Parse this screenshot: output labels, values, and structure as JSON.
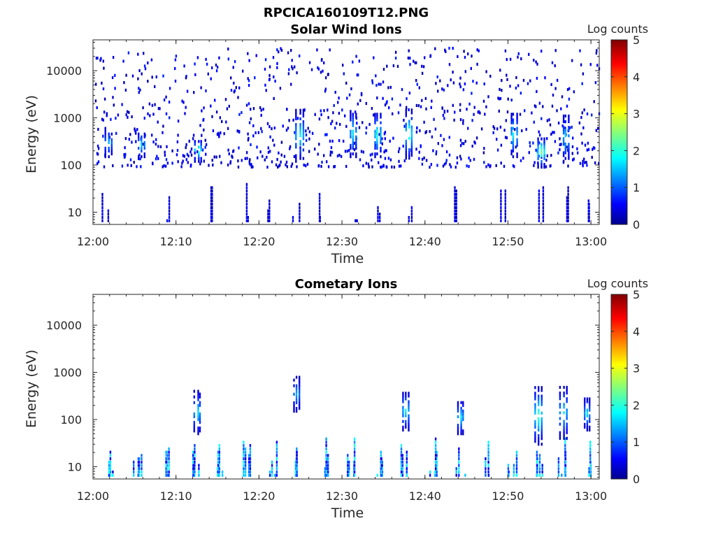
{
  "figure_title": "RPCICA160109T12.PNG",
  "colormap": "jet",
  "chart_data": [
    {
      "type": "heatmap",
      "title": "Solar Wind Ions",
      "xlabel": "Time",
      "ylabel": "Energy (eV)",
      "x_ticks": [
        "12:00",
        "12:10",
        "12:20",
        "12:30",
        "12:40",
        "12:50",
        "13:00"
      ],
      "xlim": [
        "12:00",
        "13:01"
      ],
      "y_ticks": [
        10,
        100,
        1000,
        10000
      ],
      "ylim": [
        5.5,
        45000
      ],
      "y_scale": "log",
      "colorbar": {
        "label": "Log counts",
        "min": 0,
        "max": 5,
        "ticks": [
          0,
          1,
          2,
          3,
          4,
          5
        ]
      },
      "features": {
        "scatter_band_ev": [
          90,
          30000
        ],
        "low_energy_columns_minutes": [
          1.5,
          8.7,
          14.5,
          18,
          21,
          24.5,
          27.8,
          31.5,
          34,
          37.8,
          43.5,
          49.5,
          53.8,
          56.7,
          59.2
        ],
        "bursts": [
          {
            "minute": 1.8,
            "ev_range": [
              150,
              600
            ],
            "peak_log_counts": 1.2
          },
          {
            "minute": 5.8,
            "ev_range": [
              150,
              500
            ],
            "peak_log_counts": 1.5
          },
          {
            "minute": 12.6,
            "ev_range": [
              120,
              350
            ],
            "peak_log_counts": 2.0
          },
          {
            "minute": 24.8,
            "ev_range": [
              120,
              1500
            ],
            "peak_log_counts": 1.6
          },
          {
            "minute": 31.3,
            "ev_range": [
              150,
              1500
            ],
            "peak_log_counts": 1.5
          },
          {
            "minute": 34.2,
            "ev_range": [
              150,
              1300
            ],
            "peak_log_counts": 1.8
          },
          {
            "minute": 38.0,
            "ev_range": [
              140,
              1500
            ],
            "peak_log_counts": 2.0
          },
          {
            "minute": 50.6,
            "ev_range": [
              150,
              1300
            ],
            "peak_log_counts": 1.6
          },
          {
            "minute": 53.9,
            "ev_range": [
              90,
              400
            ],
            "peak_log_counts": 2.3
          },
          {
            "minute": 56.9,
            "ev_range": [
              120,
              1200
            ],
            "peak_log_counts": 1.5
          }
        ]
      }
    },
    {
      "type": "heatmap",
      "title": "Cometary Ions",
      "xlabel": "Time",
      "ylabel": "Energy (eV)",
      "x_ticks": [
        "12:00",
        "12:10",
        "12:20",
        "12:30",
        "12:40",
        "12:50",
        "13:00"
      ],
      "xlim": [
        "12:00",
        "13:01"
      ],
      "y_ticks": [
        10,
        100,
        1000,
        10000
      ],
      "ylim": [
        5.5,
        45000
      ],
      "y_scale": "log",
      "colorbar": {
        "label": "Log counts",
        "min": 0,
        "max": 5,
        "ticks": [
          0,
          1,
          2,
          3,
          4,
          5
        ]
      },
      "features": {
        "low_energy_band_ev": [
          6,
          45
        ],
        "low_energy_columns_minutes": [
          2.0,
          5.3,
          8.8,
          12.2,
          15.2,
          18.4,
          21.5,
          24.8,
          27.8,
          31.0,
          34.2,
          37.6,
          40.8,
          44.2,
          47.5,
          50.5,
          53.6,
          56.5,
          59.3
        ],
        "bursts": [
          {
            "minute": 12.5,
            "ev_range": [
              50,
              400
            ],
            "peak_log_counts": 1.5
          },
          {
            "minute": 24.5,
            "ev_range": [
              150,
              800
            ],
            "peak_log_counts": 1.2
          },
          {
            "minute": 37.6,
            "ev_range": [
              60,
              400
            ],
            "peak_log_counts": 1.6
          },
          {
            "minute": 44.2,
            "ev_range": [
              50,
              250
            ],
            "peak_log_counts": 1.5
          },
          {
            "minute": 53.6,
            "ev_range": [
              30,
              500
            ],
            "peak_log_counts": 2.0
          },
          {
            "minute": 56.6,
            "ev_range": [
              40,
              500
            ],
            "peak_log_counts": 1.5
          },
          {
            "minute": 59.4,
            "ev_range": [
              60,
              300
            ],
            "peak_log_counts": 1.5
          }
        ]
      }
    }
  ]
}
